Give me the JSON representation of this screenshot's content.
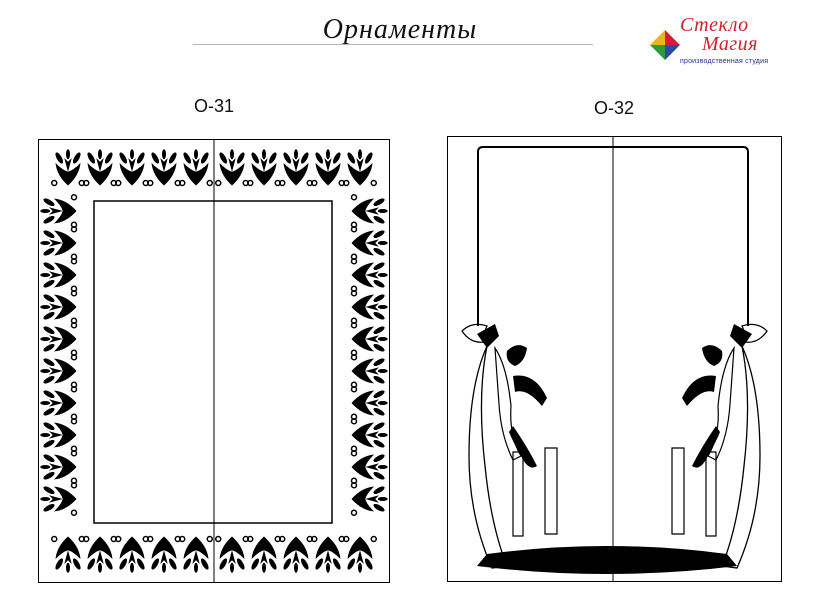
{
  "header": {
    "title": "Орнаменты"
  },
  "logo": {
    "line1": "Стекло",
    "line2": "Магия",
    "tagline": "производственная студия",
    "colors": [
      "#d21f2a",
      "#2f9a3a",
      "#e8b51f",
      "#2a4aa8"
    ]
  },
  "designs": [
    {
      "code": "О-31"
    },
    {
      "code": "О-32"
    }
  ]
}
